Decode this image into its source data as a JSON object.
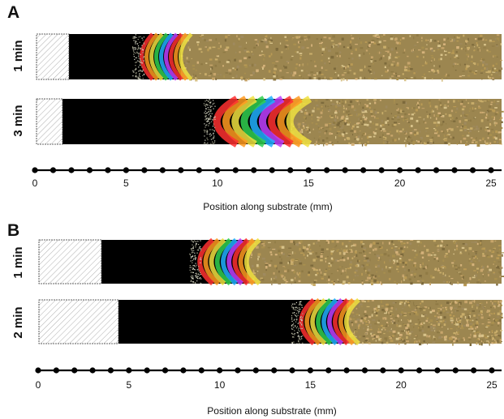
{
  "panels": [
    {
      "letter": "A",
      "rows": [
        {
          "label": "1 min",
          "front_start_mm": 5.6,
          "front_end_mm": 8.0
        },
        {
          "label": "3 min",
          "front_start_mm": 9.5,
          "front_end_mm": 14.0
        }
      ],
      "axis": {
        "ticks": [
          "0",
          "5",
          "10",
          "15",
          "20",
          "25"
        ],
        "title": "Position along substrate (mm)"
      }
    },
    {
      "letter": "B",
      "rows": [
        {
          "label": "1 min",
          "front_start_mm": 8.6,
          "front_end_mm": 11.5
        },
        {
          "label": "2 min",
          "front_start_mm": 14.2,
          "front_end_mm": 17.0
        }
      ],
      "axis": {
        "ticks": [
          "0",
          "5",
          "10",
          "15",
          "20",
          "25"
        ],
        "title": "Position along substrate (mm)"
      }
    }
  ],
  "colors": {
    "background": "#ffffff",
    "substrate_black": "#000000",
    "axis": "#000000",
    "crystal_gold": "#b9a060",
    "rainbow": [
      "#ff3030",
      "#ff9a20",
      "#f0e040",
      "#30d050",
      "#20b0ff",
      "#c040ff"
    ]
  }
}
